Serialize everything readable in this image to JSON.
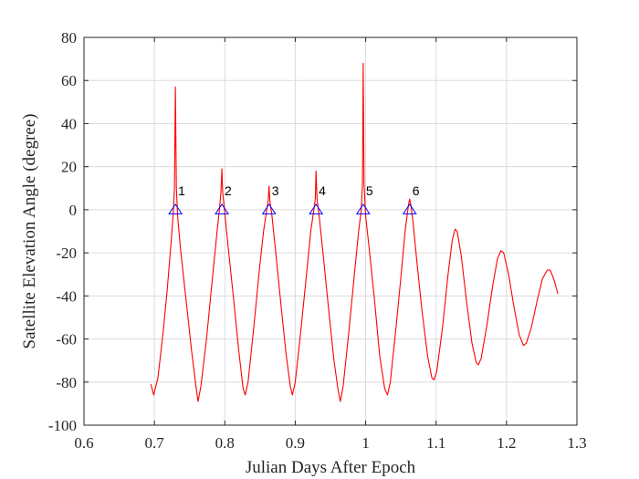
{
  "chart_data": {
    "type": "line",
    "title": "",
    "xlabel": "Julian Days After Epoch",
    "ylabel": "Satellite Elevation Angle (degree)",
    "xlim": [
      0.6,
      1.3
    ],
    "ylim": [
      -100,
      80
    ],
    "xticks": [
      0.6,
      0.7,
      0.8,
      0.9,
      1,
      1.1,
      1.2,
      1.3
    ],
    "xtick_labels": [
      "0.6",
      "0.7",
      "0.8",
      "0.9",
      "1",
      "1.1",
      "1.2",
      "1.3"
    ],
    "yticks": [
      -100,
      -80,
      -60,
      -40,
      -20,
      0,
      20,
      40,
      60,
      80
    ],
    "ytick_labels": [
      "-100",
      "-80",
      "-60",
      "-40",
      "-20",
      "0",
      "20",
      "40",
      "60",
      "80"
    ],
    "grid": true,
    "colors": {
      "line": "#ff0000",
      "marker": "#0000ff",
      "grid": "#dcdcdc",
      "axis": "#262626"
    },
    "series": [
      {
        "points": [
          [
            0.695,
            -81
          ],
          [
            0.699,
            -86
          ],
          [
            0.705,
            -78
          ],
          [
            0.712,
            -58
          ],
          [
            0.718,
            -38
          ],
          [
            0.723,
            -18
          ],
          [
            0.7265,
            -3
          ],
          [
            0.7285,
            10
          ],
          [
            0.7298,
            57
          ],
          [
            0.7312,
            10
          ],
          [
            0.733,
            -3
          ],
          [
            0.737,
            -18
          ],
          [
            0.745,
            -42
          ],
          [
            0.753,
            -66
          ],
          [
            0.759,
            -82
          ],
          [
            0.762,
            -89
          ],
          [
            0.766,
            -82
          ],
          [
            0.774,
            -60
          ],
          [
            0.782,
            -33
          ],
          [
            0.789,
            -10
          ],
          [
            0.792,
            -1
          ],
          [
            0.7945,
            8
          ],
          [
            0.7958,
            19
          ],
          [
            0.797,
            8
          ],
          [
            0.8,
            -2
          ],
          [
            0.805,
            -18
          ],
          [
            0.812,
            -40
          ],
          [
            0.82,
            -66
          ],
          [
            0.826,
            -83
          ],
          [
            0.829,
            -86
          ],
          [
            0.833,
            -80
          ],
          [
            0.841,
            -55
          ],
          [
            0.849,
            -28
          ],
          [
            0.855,
            -10
          ],
          [
            0.859,
            -1
          ],
          [
            0.8615,
            4
          ],
          [
            0.8628,
            11
          ],
          [
            0.864,
            4
          ],
          [
            0.867,
            -3
          ],
          [
            0.873,
            -22
          ],
          [
            0.88,
            -45
          ],
          [
            0.887,
            -67
          ],
          [
            0.893,
            -82
          ],
          [
            0.896,
            -86
          ],
          [
            0.9,
            -80
          ],
          [
            0.908,
            -56
          ],
          [
            0.916,
            -30
          ],
          [
            0.922,
            -10
          ],
          [
            0.926,
            -1
          ],
          [
            0.9285,
            5
          ],
          [
            0.9295,
            18
          ],
          [
            0.931,
            5
          ],
          [
            0.934,
            -3
          ],
          [
            0.94,
            -22
          ],
          [
            0.947,
            -45
          ],
          [
            0.955,
            -70
          ],
          [
            0.961,
            -84
          ],
          [
            0.964,
            -89
          ],
          [
            0.968,
            -82
          ],
          [
            0.976,
            -57
          ],
          [
            0.984,
            -30
          ],
          [
            0.99,
            -10
          ],
          [
            0.9935,
            -1
          ],
          [
            0.9955,
            12
          ],
          [
            0.9965,
            68
          ],
          [
            0.9977,
            12
          ],
          [
            1.0,
            -3
          ],
          [
            1.005,
            -18
          ],
          [
            1.012,
            -40
          ],
          [
            1.02,
            -68
          ],
          [
            1.027,
            -83
          ],
          [
            1.031,
            -86
          ],
          [
            1.035,
            -80
          ],
          [
            1.043,
            -55
          ],
          [
            1.051,
            -28
          ],
          [
            1.056,
            -10
          ],
          [
            1.0595,
            -1
          ],
          [
            1.0612,
            3
          ],
          [
            1.0625,
            5
          ],
          [
            1.0638,
            3
          ],
          [
            1.067,
            -5
          ],
          [
            1.073,
            -25
          ],
          [
            1.08,
            -47
          ],
          [
            1.088,
            -68
          ],
          [
            1.094,
            -78
          ],
          [
            1.097,
            -79
          ],
          [
            1.101,
            -75
          ],
          [
            1.109,
            -55
          ],
          [
            1.117,
            -30
          ],
          [
            1.123,
            -14
          ],
          [
            1.127,
            -9
          ],
          [
            1.13,
            -10
          ],
          [
            1.136,
            -22
          ],
          [
            1.143,
            -42
          ],
          [
            1.151,
            -62
          ],
          [
            1.157,
            -71
          ],
          [
            1.16,
            -72
          ],
          [
            1.164,
            -69
          ],
          [
            1.172,
            -54
          ],
          [
            1.18,
            -36
          ],
          [
            1.187,
            -23
          ],
          [
            1.192,
            -19
          ],
          [
            1.196,
            -20
          ],
          [
            1.203,
            -30
          ],
          [
            1.21,
            -44
          ],
          [
            1.218,
            -58
          ],
          [
            1.224,
            -63
          ],
          [
            1.228,
            -62
          ],
          [
            1.235,
            -55
          ],
          [
            1.243,
            -43
          ],
          [
            1.251,
            -32
          ],
          [
            1.258,
            -28
          ],
          [
            1.262,
            -28
          ],
          [
            1.267,
            -32
          ],
          [
            1.273,
            -39
          ]
        ]
      }
    ],
    "markers": [
      {
        "label": "1",
        "x": 0.7298,
        "y": 0
      },
      {
        "label": "2",
        "x": 0.7958,
        "y": 0
      },
      {
        "label": "3",
        "x": 0.8628,
        "y": 0
      },
      {
        "label": "4",
        "x": 0.9295,
        "y": 0
      },
      {
        "label": "5",
        "x": 0.9965,
        "y": 0
      },
      {
        "label": "6",
        "x": 1.0625,
        "y": 0
      }
    ]
  }
}
